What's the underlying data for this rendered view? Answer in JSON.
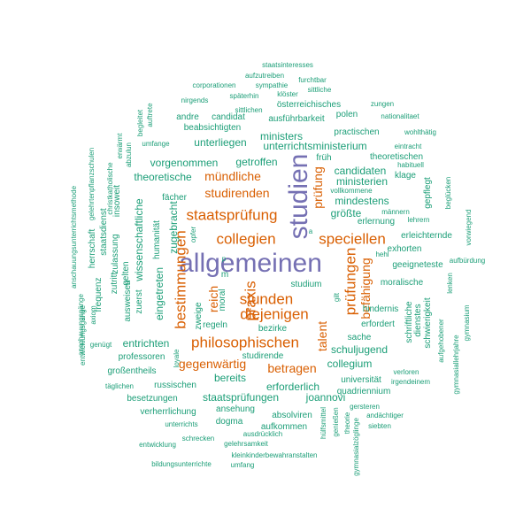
{
  "palette": {
    "teal": "#1b9e77",
    "orange": "#d95f02",
    "purple": "#7570b3"
  },
  "words": [
    {
      "text": "allgemeinen",
      "color": "purple",
      "tier": 1,
      "vertical": false
    },
    {
      "text": "studien",
      "color": "purple",
      "tier": 1,
      "vertical": true
    },
    {
      "text": "prüfungen",
      "color": "orange",
      "tier": 2,
      "vertical": true
    },
    {
      "text": "staatsprüfung",
      "color": "orange",
      "tier": 2,
      "vertical": false
    },
    {
      "text": "collegien",
      "color": "orange",
      "tier": 2,
      "vertical": false
    },
    {
      "text": "speciellen",
      "color": "orange",
      "tier": 2,
      "vertical": false
    },
    {
      "text": "praxis",
      "color": "orange",
      "tier": 2,
      "vertical": true
    },
    {
      "text": "stunden",
      "color": "orange",
      "tier": 2,
      "vertical": false
    },
    {
      "text": "diejenigen",
      "color": "orange",
      "tier": 2,
      "vertical": false
    },
    {
      "text": "bestimmungen",
      "color": "orange",
      "tier": 2,
      "vertical": true
    },
    {
      "text": "philosophischen",
      "color": "orange",
      "tier": 2,
      "vertical": false
    },
    {
      "text": "studirenden",
      "color": "orange",
      "tier": 3,
      "vertical": false
    },
    {
      "text": "prüfung",
      "color": "orange",
      "tier": 3,
      "vertical": true
    },
    {
      "text": "mündliche",
      "color": "orange",
      "tier": 3,
      "vertical": false
    },
    {
      "text": "reich",
      "color": "orange",
      "tier": 3,
      "vertical": true
    },
    {
      "text": "gegenwärtig",
      "color": "orange",
      "tier": 3,
      "vertical": false
    },
    {
      "text": "betragen",
      "color": "orange",
      "tier": 3,
      "vertical": false
    },
    {
      "text": "talent",
      "color": "orange",
      "tier": 3,
      "vertical": true
    },
    {
      "text": "befähigung",
      "color": "orange",
      "tier": 3,
      "vertical": true
    },
    {
      "text": "unterrichtsministerium",
      "color": "teal",
      "tier": 4,
      "vertical": false
    },
    {
      "text": "candidaten",
      "color": "teal",
      "tier": 4,
      "vertical": false
    },
    {
      "text": "ministerien",
      "color": "teal",
      "tier": 4,
      "vertical": false
    },
    {
      "text": "mindestens",
      "color": "teal",
      "tier": 4,
      "vertical": false
    },
    {
      "text": "vorgenommen",
      "color": "teal",
      "tier": 4,
      "vertical": false
    },
    {
      "text": "getroffen",
      "color": "teal",
      "tier": 4,
      "vertical": false
    },
    {
      "text": "ministers",
      "color": "teal",
      "tier": 4,
      "vertical": false
    },
    {
      "text": "unterliegen",
      "color": "teal",
      "tier": 4,
      "vertical": false
    },
    {
      "text": "theoretische",
      "color": "teal",
      "tier": 4,
      "vertical": false
    },
    {
      "text": "größte",
      "color": "teal",
      "tier": 4,
      "vertical": false
    },
    {
      "text": "schuljugend",
      "color": "teal",
      "tier": 4,
      "vertical": false
    },
    {
      "text": "collegium",
      "color": "teal",
      "tier": 4,
      "vertical": false
    },
    {
      "text": "entrichten",
      "color": "teal",
      "tier": 4,
      "vertical": false
    },
    {
      "text": "staatsprüfungen",
      "color": "teal",
      "tier": 4,
      "vertical": false
    },
    {
      "text": "bereits",
      "color": "teal",
      "tier": 4,
      "vertical": false
    },
    {
      "text": "erforderlich",
      "color": "teal",
      "tier": 4,
      "vertical": false
    },
    {
      "text": "joannovi",
      "color": "teal",
      "tier": 4,
      "vertical": false
    },
    {
      "text": "wissenschaftliche",
      "color": "teal",
      "tier": 4,
      "vertical": true
    },
    {
      "text": "eingetreten",
      "color": "teal",
      "tier": 4,
      "vertical": true
    },
    {
      "text": "zugebracht",
      "color": "teal",
      "tier": 4,
      "vertical": true
    },
    {
      "text": "österreichisches",
      "color": "teal",
      "tier": 5,
      "vertical": false
    },
    {
      "text": "ausführbarkeit",
      "color": "teal",
      "tier": 5,
      "vertical": false
    },
    {
      "text": "beabsichtigten",
      "color": "teal",
      "tier": 5,
      "vertical": false
    },
    {
      "text": "practischen",
      "color": "teal",
      "tier": 5,
      "vertical": false
    },
    {
      "text": "candidat",
      "color": "teal",
      "tier": 5,
      "vertical": false
    },
    {
      "text": "andre",
      "color": "teal",
      "tier": 5,
      "vertical": false
    },
    {
      "text": "polen",
      "color": "teal",
      "tier": 5,
      "vertical": false
    },
    {
      "text": "theoretischen",
      "color": "teal",
      "tier": 5,
      "vertical": false
    },
    {
      "text": "früh",
      "color": "teal",
      "tier": 5,
      "vertical": false
    },
    {
      "text": "klage",
      "color": "teal",
      "tier": 5,
      "vertical": false
    },
    {
      "text": "erlernung",
      "color": "teal",
      "tier": 5,
      "vertical": false
    },
    {
      "text": "erleichternde",
      "color": "teal",
      "tier": 5,
      "vertical": false
    },
    {
      "text": "geeigneteste",
      "color": "teal",
      "tier": 5,
      "vertical": false
    },
    {
      "text": "moralische",
      "color": "teal",
      "tier": 5,
      "vertical": false
    },
    {
      "text": "studium",
      "color": "teal",
      "tier": 5,
      "vertical": false
    },
    {
      "text": "regeln",
      "color": "teal",
      "tier": 5,
      "vertical": false
    },
    {
      "text": "bezirke",
      "color": "teal",
      "tier": 5,
      "vertical": false
    },
    {
      "text": "studirende",
      "color": "teal",
      "tier": 5,
      "vertical": false
    },
    {
      "text": "professoren",
      "color": "teal",
      "tier": 5,
      "vertical": false
    },
    {
      "text": "großentheils",
      "color": "teal",
      "tier": 5,
      "vertical": false
    },
    {
      "text": "russischen",
      "color": "teal",
      "tier": 5,
      "vertical": false
    },
    {
      "text": "besetzungen",
      "color": "teal",
      "tier": 5,
      "vertical": false
    },
    {
      "text": "verherrlichung",
      "color": "teal",
      "tier": 5,
      "vertical": false
    },
    {
      "text": "ansehung",
      "color": "teal",
      "tier": 5,
      "vertical": false
    },
    {
      "text": "dogma",
      "color": "teal",
      "tier": 5,
      "vertical": false
    },
    {
      "text": "absolviren",
      "color": "teal",
      "tier": 5,
      "vertical": false
    },
    {
      "text": "aufkommen",
      "color": "teal",
      "tier": 5,
      "vertical": false
    },
    {
      "text": "universität",
      "color": "teal",
      "tier": 5,
      "vertical": false
    },
    {
      "text": "quadriennium",
      "color": "teal",
      "tier": 5,
      "vertical": false
    },
    {
      "text": "exhorten",
      "color": "teal",
      "tier": 5,
      "vertical": false
    },
    {
      "text": "hindernis",
      "color": "teal",
      "tier": 5,
      "vertical": false
    },
    {
      "text": "erfordert",
      "color": "teal",
      "tier": 5,
      "vertical": false
    },
    {
      "text": "sache",
      "color": "teal",
      "tier": 5,
      "vertical": false
    },
    {
      "text": "zweige",
      "color": "teal",
      "tier": 5,
      "vertical": true
    },
    {
      "text": "moral",
      "color": "teal",
      "tier": 5,
      "vertical": true
    },
    {
      "text": "humanität",
      "color": "teal",
      "tier": 5,
      "vertical": true
    },
    {
      "text": "fächer",
      "color": "teal",
      "tier": 5,
      "vertical": false
    },
    {
      "text": "gepflegt",
      "color": "teal",
      "tier": 5,
      "vertical": true
    },
    {
      "text": "schriftliche",
      "color": "teal",
      "tier": 5,
      "vertical": true
    },
    {
      "text": "dienstes",
      "color": "teal",
      "tier": 5,
      "vertical": true
    },
    {
      "text": "schwierigkeit",
      "color": "teal",
      "tier": 5,
      "vertical": true
    },
    {
      "text": "zuerst",
      "color": "teal",
      "tier": 5,
      "vertical": true
    },
    {
      "text": "ausweisen",
      "color": "teal",
      "tier": 5,
      "vertical": true
    },
    {
      "text": "gelten",
      "color": "teal",
      "tier": 5,
      "vertical": true
    },
    {
      "text": "insoweit",
      "color": "teal",
      "tier": 5,
      "vertical": true
    },
    {
      "text": "zulassung",
      "color": "teal",
      "tier": 5,
      "vertical": true
    },
    {
      "text": "zutritt",
      "color": "teal",
      "tier": 5,
      "vertical": true
    },
    {
      "text": "staatsdienst",
      "color": "teal",
      "tier": 5,
      "vertical": true
    },
    {
      "text": "herrschaft",
      "color": "teal",
      "tier": 5,
      "vertical": true
    },
    {
      "text": "frequenz",
      "color": "teal",
      "tier": 5,
      "vertical": true
    },
    {
      "text": "staatsinteresses",
      "color": "teal",
      "tier": 6,
      "vertical": false
    },
    {
      "text": "aufzutreiben",
      "color": "teal",
      "tier": 6,
      "vertical": false
    },
    {
      "text": "sympathie",
      "color": "teal",
      "tier": 6,
      "vertical": false
    },
    {
      "text": "furchtbar",
      "color": "teal",
      "tier": 6,
      "vertical": false
    },
    {
      "text": "corporationen",
      "color": "teal",
      "tier": 6,
      "vertical": false
    },
    {
      "text": "sittliche",
      "color": "teal",
      "tier": 6,
      "vertical": false
    },
    {
      "text": "späterhin",
      "color": "teal",
      "tier": 6,
      "vertical": false
    },
    {
      "text": "klöster",
      "color": "teal",
      "tier": 6,
      "vertical": false
    },
    {
      "text": "nirgends",
      "color": "teal",
      "tier": 6,
      "vertical": false
    },
    {
      "text": "sittlichen",
      "color": "teal",
      "tier": 6,
      "vertical": false
    },
    {
      "text": "zungen",
      "color": "teal",
      "tier": 6,
      "vertical": false
    },
    {
      "text": "nationalitaet",
      "color": "teal",
      "tier": 6,
      "vertical": false
    },
    {
      "text": "umfange",
      "color": "teal",
      "tier": 6,
      "vertical": false
    },
    {
      "text": "wohlthätig",
      "color": "teal",
      "tier": 6,
      "vertical": false
    },
    {
      "text": "eintracht",
      "color": "teal",
      "tier": 6,
      "vertical": false
    },
    {
      "text": "habituell",
      "color": "teal",
      "tier": 6,
      "vertical": false
    },
    {
      "text": "vollkommene",
      "color": "teal",
      "tier": 6,
      "vertical": false
    },
    {
      "text": "männern",
      "color": "teal",
      "tier": 6,
      "vertical": false
    },
    {
      "text": "lehrern",
      "color": "teal",
      "tier": 6,
      "vertical": false
    },
    {
      "text": "hehl",
      "color": "teal",
      "tier": 6,
      "vertical": false
    },
    {
      "text": "aufbürdung",
      "color": "teal",
      "tier": 6,
      "vertical": false
    },
    {
      "text": "verloren",
      "color": "teal",
      "tier": 6,
      "vertical": false
    },
    {
      "text": "irgendeinem",
      "color": "teal",
      "tier": 6,
      "vertical": false
    },
    {
      "text": "gersteren",
      "color": "teal",
      "tier": 6,
      "vertical": false
    },
    {
      "text": "andächtiger",
      "color": "teal",
      "tier": 6,
      "vertical": false
    },
    {
      "text": "siebten",
      "color": "teal",
      "tier": 6,
      "vertical": false
    },
    {
      "text": "unterrichts",
      "color": "teal",
      "tier": 6,
      "vertical": false
    },
    {
      "text": "schrecken",
      "color": "teal",
      "tier": 6,
      "vertical": false
    },
    {
      "text": "ausdrücklich",
      "color": "teal",
      "tier": 6,
      "vertical": false
    },
    {
      "text": "entwicklung",
      "color": "teal",
      "tier": 6,
      "vertical": false
    },
    {
      "text": "gelehrsamkeit",
      "color": "teal",
      "tier": 6,
      "vertical": false
    },
    {
      "text": "kleinkinderbewahranstalten",
      "color": "teal",
      "tier": 6,
      "vertical": false
    },
    {
      "text": "bildungsunterrichte",
      "color": "teal",
      "tier": 6,
      "vertical": false
    },
    {
      "text": "umfang",
      "color": "teal",
      "tier": 6,
      "vertical": false
    },
    {
      "text": "täglichen",
      "color": "teal",
      "tier": 6,
      "vertical": false
    },
    {
      "text": "genügt",
      "color": "teal",
      "tier": 6,
      "vertical": false
    },
    {
      "text": "loyale",
      "color": "teal",
      "tier": 6,
      "vertical": true
    },
    {
      "text": "opfer",
      "color": "teal",
      "tier": 6,
      "vertical": true
    },
    {
      "text": "p",
      "color": "teal",
      "tier": 6,
      "vertical": false
    },
    {
      "text": "a",
      "color": "teal",
      "tier": 6,
      "vertical": false
    },
    {
      "text": "m",
      "color": "teal",
      "tier": 5,
      "vertical": false
    },
    {
      "text": "gilt",
      "color": "teal",
      "tier": 6,
      "vertical": true
    },
    {
      "text": "aufgehobener",
      "color": "teal",
      "tier": 6,
      "vertical": true
    },
    {
      "text": "gymnasium",
      "color": "teal",
      "tier": 6,
      "vertical": true
    },
    {
      "text": "lenken",
      "color": "teal",
      "tier": 6,
      "vertical": true
    },
    {
      "text": "gymnasiallehrjahre",
      "color": "teal",
      "tier": 6,
      "vertical": true
    },
    {
      "text": "vorwiegend",
      "color": "teal",
      "tier": 6,
      "vertical": true
    },
    {
      "text": "beglücken",
      "color": "teal",
      "tier": 6,
      "vertical": true
    },
    {
      "text": "hülfsmittel",
      "color": "teal",
      "tier": 6,
      "vertical": true
    },
    {
      "text": "genießen",
      "color": "teal",
      "tier": 6,
      "vertical": true
    },
    {
      "text": "theorie",
      "color": "teal",
      "tier": 6,
      "vertical": true
    },
    {
      "text": "gymnasialzöglinge",
      "color": "teal",
      "tier": 6,
      "vertical": true
    },
    {
      "text": "auftrete",
      "color": "teal",
      "tier": 6,
      "vertical": true
    },
    {
      "text": "begleitet",
      "color": "teal",
      "tier": 6,
      "vertical": true
    },
    {
      "text": "erwärmt",
      "color": "teal",
      "tier": 6,
      "vertical": true
    },
    {
      "text": "abzulun",
      "color": "teal",
      "tier": 6,
      "vertical": true
    },
    {
      "text": "christkatholische",
      "color": "teal",
      "tier": 6,
      "vertical": true
    },
    {
      "text": "gelehrtenpflanzschulen",
      "color": "teal",
      "tier": 6,
      "vertical": true
    },
    {
      "text": "anschauungsunterrichtsmethode",
      "color": "teal",
      "tier": 6,
      "vertical": true
    },
    {
      "text": "anschauungsgänge",
      "color": "teal",
      "tier": 6,
      "vertical": true
    },
    {
      "text": "axiom",
      "color": "teal",
      "tier": 6,
      "vertical": true
    },
    {
      "text": "entwicklungsgange",
      "color": "teal",
      "tier": 6,
      "vertical": true
    }
  ]
}
